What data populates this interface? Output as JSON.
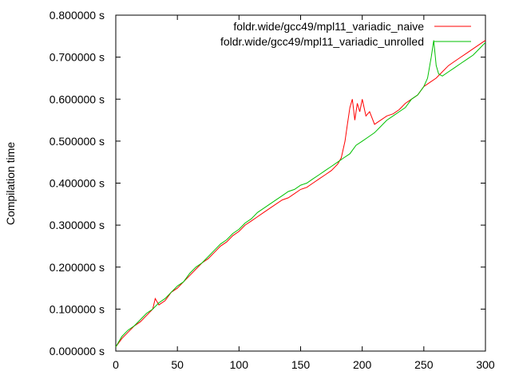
{
  "chart_data": {
    "type": "line",
    "title": "",
    "xlabel": "",
    "ylabel": "Compilation time",
    "xlim": [
      0,
      300
    ],
    "ylim": [
      0,
      0.8
    ],
    "x_ticks": [
      "0",
      "50",
      "100",
      "150",
      "200",
      "250",
      "300"
    ],
    "x_tick_values": [
      0,
      50,
      100,
      150,
      200,
      250,
      300
    ],
    "y_ticks": [
      "0.000000 s",
      "0.100000 s",
      "0.200000 s",
      "0.300000 s",
      "0.400000 s",
      "0.500000 s",
      "0.600000 s",
      "0.700000 s",
      "0.800000 s"
    ],
    "y_tick_values": [
      0,
      0.1,
      0.2,
      0.3,
      0.4,
      0.5,
      0.6,
      0.7,
      0.8
    ],
    "grid": false,
    "legend_position": "top-right",
    "series": [
      {
        "name": "foldr.wide/gcc49/mpl11_variadic_naive",
        "color": "#ff0000",
        "x": [
          0,
          5,
          10,
          15,
          20,
          25,
          30,
          32,
          35,
          40,
          45,
          50,
          55,
          60,
          65,
          70,
          75,
          80,
          85,
          90,
          95,
          100,
          105,
          110,
          115,
          120,
          125,
          130,
          135,
          140,
          145,
          150,
          155,
          160,
          165,
          170,
          175,
          180,
          183,
          186,
          188,
          190,
          192,
          194,
          196,
          198,
          200,
          203,
          206,
          210,
          215,
          220,
          225,
          230,
          235,
          240,
          245,
          250,
          255,
          260,
          265,
          270,
          275,
          280,
          285,
          290,
          295,
          300
        ],
        "y": [
          0.01,
          0.03,
          0.045,
          0.06,
          0.07,
          0.085,
          0.1,
          0.125,
          0.11,
          0.12,
          0.14,
          0.15,
          0.165,
          0.18,
          0.195,
          0.21,
          0.22,
          0.235,
          0.25,
          0.26,
          0.275,
          0.285,
          0.3,
          0.31,
          0.32,
          0.33,
          0.34,
          0.35,
          0.36,
          0.365,
          0.375,
          0.385,
          0.39,
          0.4,
          0.41,
          0.42,
          0.43,
          0.445,
          0.46,
          0.5,
          0.54,
          0.58,
          0.6,
          0.55,
          0.59,
          0.57,
          0.6,
          0.56,
          0.57,
          0.54,
          0.55,
          0.56,
          0.565,
          0.575,
          0.59,
          0.6,
          0.61,
          0.63,
          0.64,
          0.65,
          0.665,
          0.68,
          0.69,
          0.7,
          0.71,
          0.72,
          0.73,
          0.74
        ]
      },
      {
        "name": "foldr.wide/gcc49/mpl11_variadic_unrolled",
        "color": "#00c000",
        "x": [
          0,
          5,
          10,
          15,
          20,
          25,
          30,
          35,
          40,
          45,
          50,
          55,
          60,
          65,
          70,
          75,
          80,
          85,
          90,
          95,
          100,
          105,
          110,
          115,
          120,
          125,
          130,
          135,
          140,
          145,
          150,
          155,
          160,
          165,
          170,
          175,
          180,
          185,
          190,
          195,
          200,
          205,
          210,
          215,
          220,
          225,
          230,
          235,
          240,
          245,
          250,
          253,
          256,
          258,
          260,
          262,
          265,
          270,
          275,
          280,
          285,
          290,
          295,
          300
        ],
        "y": [
          0.01,
          0.035,
          0.05,
          0.06,
          0.075,
          0.09,
          0.1,
          0.115,
          0.125,
          0.14,
          0.155,
          0.165,
          0.185,
          0.2,
          0.21,
          0.225,
          0.24,
          0.255,
          0.265,
          0.28,
          0.29,
          0.305,
          0.315,
          0.33,
          0.34,
          0.35,
          0.36,
          0.37,
          0.38,
          0.385,
          0.395,
          0.4,
          0.41,
          0.42,
          0.43,
          0.44,
          0.45,
          0.46,
          0.47,
          0.49,
          0.5,
          0.51,
          0.52,
          0.535,
          0.55,
          0.56,
          0.57,
          0.58,
          0.6,
          0.61,
          0.63,
          0.65,
          0.7,
          0.74,
          0.68,
          0.66,
          0.655,
          0.665,
          0.675,
          0.685,
          0.695,
          0.705,
          0.72,
          0.735
        ]
      }
    ]
  }
}
